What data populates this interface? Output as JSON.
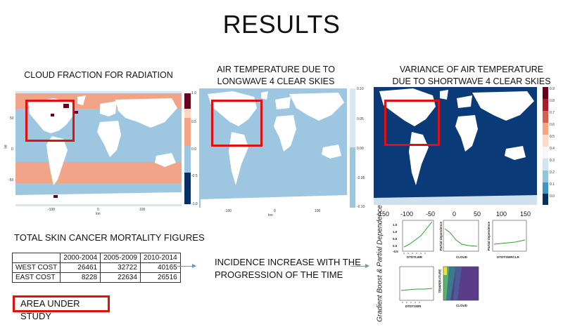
{
  "title": "RESULTS",
  "captions": {
    "cloud": "CLOUD FRACTION FOR RADIATION",
    "air_line1": "AIR TEMPERATURE DUE TO",
    "air_line2": "LONGWAVE 4 CLEAR SKIES",
    "var_line1": "VARIANCE OF AIR TEMPERATURE",
    "var_line2": "DUE TO SHORTWAVE 4 CLEAR SKIES"
  },
  "maps": {
    "cloud": {
      "xticks": [
        "-100",
        "0",
        "100"
      ],
      "yticks": [
        "50",
        "0",
        "-50"
      ],
      "xlabel": "lon",
      "ylabel": "lat",
      "colorbar": [
        "1.0",
        "0.5",
        "0.0",
        "-0.5",
        "-1.0"
      ],
      "colors": {
        "ocean": "#9dc7e1",
        "band": "#f1a488",
        "dark": "#67001f",
        "land": "#ffffff"
      }
    },
    "air": {
      "xticks": [
        "-100",
        "0",
        "100"
      ],
      "xlabel": "lon",
      "colorbar": [
        "0.10",
        "0.05",
        "0.00",
        "-0.05",
        "-0.10"
      ],
      "colors": {
        "ocean": "#9dc7e1",
        "land": "#ffffff"
      }
    },
    "variance": {
      "xticks": [
        "-150",
        "-100",
        "-50",
        "0",
        "50",
        "100",
        "150"
      ],
      "colorbar": [
        "0.9",
        "0.8",
        "0.7",
        "0.6",
        "0.5",
        "0.4",
        "0.3",
        "0.2",
        "0.1",
        "0.0"
      ],
      "colors": {
        "ocean": "#0b3a78",
        "land": "#ffffff"
      }
    }
  },
  "mortality": {
    "heading": "TOTAL SKIN CANCER MORTALITY FIGURES",
    "columns": [
      "",
      "2000-2004",
      "2005-2009",
      "2010-2014"
    ],
    "rows": [
      {
        "label": "WEST COST",
        "values": [
          "26461",
          "32722",
          "40165"
        ]
      },
      {
        "label": "EAST COST",
        "values": [
          "8228",
          "22634",
          "26516"
        ]
      }
    ]
  },
  "incidence": {
    "line1": "INCIDENCE INCREASE WITH THE",
    "line2": "PROGRESSION OF THE TIME"
  },
  "gbm": {
    "side_label": "Gradient Boost & Partial Dependence",
    "yticks": [
      "1.5",
      "1.0",
      "0.5",
      "0.0",
      "-0.5"
    ],
    "panels": [
      {
        "xlabel": "DTDTLWR",
        "ylabel": ""
      },
      {
        "xlabel": "CLOUD",
        "ylabel": "Partial dependence"
      },
      {
        "xlabel": "DTDTSWRCLR",
        "ylabel": "Partial dependence"
      },
      {
        "xlabel": "DTDTSWR",
        "ylabel": ""
      },
      {
        "xlabel": "CLOUD",
        "ylabel": "TEMPERATURE"
      }
    ],
    "line_color": "#2ca02c"
  },
  "legend_box": "AREA UNDER STUDY",
  "highlight_color": "#e01010"
}
